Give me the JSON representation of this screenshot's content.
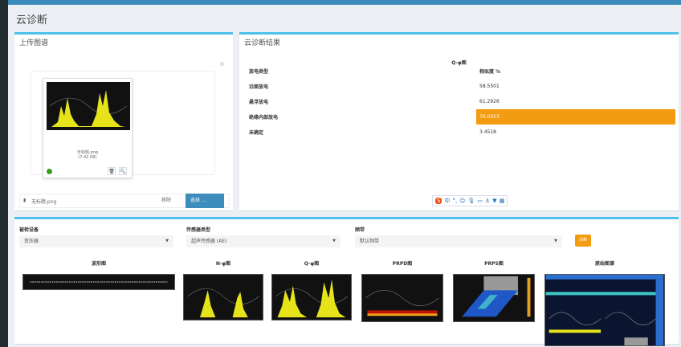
{
  "page_title": "云诊断",
  "upload": {
    "title": "上传图谱",
    "close": "×",
    "file_name": "无标题.png",
    "file_size": "(7.42 KB)",
    "file_field": "无标题.png",
    "remove": "移除",
    "choose": "选择 …"
  },
  "result": {
    "title": "云诊断结果",
    "chart_name": "Q-φ图",
    "col_type": "放电类型",
    "col_sim": "相似度 %",
    "rows": [
      {
        "type": "沿面放电",
        "value": "58.5501"
      },
      {
        "type": "悬浮放电",
        "value": "61.2926"
      },
      {
        "type": "绝缘内部放电",
        "value": "76.0353",
        "highlight": true
      },
      {
        "type": "未确定",
        "value": "3.4518"
      }
    ],
    "highlight_color": "#f39c12"
  },
  "form": {
    "device_label": "被检设备",
    "device_value": "变压器",
    "sensor_label": "传感器类型",
    "sensor_value": "超声传感器 (AE)",
    "band_label": "频带",
    "band_value": "默认频带",
    "diagnose": "诊断"
  },
  "images": [
    "波形图",
    "N-φ图",
    "Q-φ图",
    "PRPD图",
    "PRPS图",
    "原始图谱"
  ],
  "colors": {
    "accent": "#3c8dbc",
    "box_border": "#4fc1e9",
    "warning": "#f39c12"
  }
}
